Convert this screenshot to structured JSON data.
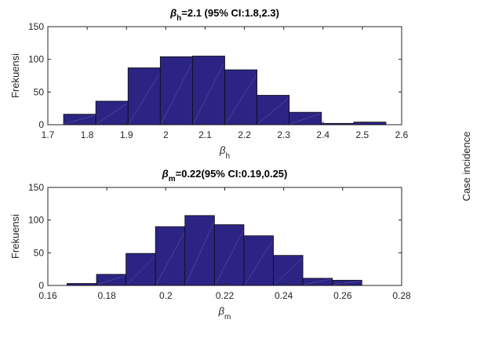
{
  "side_label": "Case incidence",
  "colors": {
    "bar_fill": "#2c2484",
    "bar_edge": "#0d0d0d",
    "axis": "#262626"
  },
  "chart_data": [
    {
      "type": "bar",
      "title_sym": "β",
      "title_sub": "h",
      "title_rest": "=2.1 (95% CI:1.8,2.3)",
      "xlabel_sym": "β",
      "xlabel_sub": "h",
      "ylabel": "Frekuensi",
      "xlim": [
        1.7,
        2.6
      ],
      "ylim": [
        0,
        150
      ],
      "xticks": [
        1.7,
        1.8,
        1.9,
        2,
        2.1,
        2.2,
        2.3,
        2.4,
        2.5,
        2.6
      ],
      "xtick_labels": [
        "1.7",
        "1.8",
        "1.9",
        "2",
        "2.1",
        "2.2",
        "2.3",
        "2.4",
        "2.5",
        "2.6"
      ],
      "yticks": [
        0,
        50,
        100,
        150
      ],
      "ytick_labels": [
        "0",
        "50",
        "100",
        "150"
      ],
      "bin_edges": [
        1.74,
        1.822,
        1.904,
        1.986,
        2.068,
        2.15,
        2.232,
        2.314,
        2.396,
        2.478,
        2.56
      ],
      "values": [
        16,
        36,
        87,
        104,
        105,
        84,
        45,
        19,
        2,
        4
      ],
      "grid": false
    },
    {
      "type": "bar",
      "title_sym": "β",
      "title_sub": "m",
      "title_rest": "=0.22(95% CI:0.19,0.25)",
      "xlabel_sym": "β",
      "xlabel_sub": "m",
      "ylabel": "Frekuensi",
      "xlim": [
        0.16,
        0.28
      ],
      "ylim": [
        0,
        150
      ],
      "xticks": [
        0.16,
        0.18,
        0.2,
        0.22,
        0.24,
        0.26,
        0.28
      ],
      "xtick_labels": [
        "0.16",
        "0.18",
        "0.2",
        "0.22",
        "0.24",
        "0.26",
        "0.28"
      ],
      "yticks": [
        0,
        50,
        100,
        150
      ],
      "ytick_labels": [
        "0",
        "50",
        "100",
        "150"
      ],
      "bin_edges": [
        0.1665,
        0.1765,
        0.1865,
        0.1965,
        0.2065,
        0.2165,
        0.2265,
        0.2365,
        0.2465,
        0.2565,
        0.2665
      ],
      "values": [
        3,
        17,
        49,
        90,
        107,
        93,
        76,
        46,
        11,
        8
      ],
      "grid": false
    }
  ]
}
